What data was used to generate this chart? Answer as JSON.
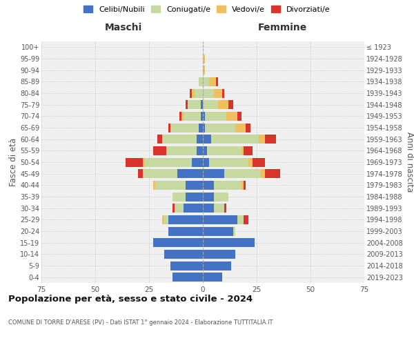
{
  "age_groups": [
    "0-4",
    "5-9",
    "10-14",
    "15-19",
    "20-24",
    "25-29",
    "30-34",
    "35-39",
    "40-44",
    "45-49",
    "50-54",
    "55-59",
    "60-64",
    "65-69",
    "70-74",
    "75-79",
    "80-84",
    "85-89",
    "90-94",
    "95-99",
    "100+"
  ],
  "birth_years": [
    "2019-2023",
    "2014-2018",
    "2009-2013",
    "2004-2008",
    "1999-2003",
    "1994-1998",
    "1989-1993",
    "1984-1988",
    "1979-1983",
    "1974-1978",
    "1969-1973",
    "1964-1968",
    "1959-1963",
    "1954-1958",
    "1949-1953",
    "1944-1948",
    "1939-1943",
    "1934-1938",
    "1929-1933",
    "1924-1928",
    "≤ 1923"
  ],
  "male": {
    "celibi": [
      14,
      15,
      18,
      23,
      16,
      16,
      9,
      8,
      8,
      12,
      5,
      3,
      3,
      2,
      1,
      1,
      0,
      0,
      0,
      0,
      0
    ],
    "coniugati": [
      0,
      0,
      0,
      0,
      0,
      2,
      4,
      6,
      14,
      16,
      22,
      14,
      16,
      13,
      8,
      6,
      4,
      2,
      0,
      0,
      0
    ],
    "vedovi": [
      0,
      0,
      0,
      0,
      0,
      1,
      0,
      0,
      1,
      0,
      1,
      0,
      0,
      0,
      1,
      0,
      1,
      0,
      0,
      0,
      0
    ],
    "divorziati": [
      0,
      0,
      0,
      0,
      0,
      0,
      1,
      0,
      0,
      2,
      8,
      6,
      2,
      1,
      1,
      1,
      1,
      0,
      0,
      0,
      0
    ]
  },
  "female": {
    "nubili": [
      9,
      13,
      15,
      24,
      14,
      16,
      5,
      5,
      5,
      10,
      3,
      2,
      4,
      1,
      1,
      0,
      0,
      0,
      0,
      0,
      0
    ],
    "coniugate": [
      0,
      0,
      0,
      0,
      1,
      3,
      5,
      7,
      13,
      17,
      18,
      16,
      22,
      14,
      10,
      7,
      5,
      3,
      0,
      0,
      0
    ],
    "vedove": [
      0,
      0,
      0,
      0,
      0,
      0,
      0,
      0,
      1,
      2,
      2,
      1,
      3,
      5,
      5,
      5,
      4,
      3,
      1,
      1,
      0
    ],
    "divorziate": [
      0,
      0,
      0,
      0,
      0,
      2,
      1,
      0,
      1,
      7,
      6,
      4,
      5,
      2,
      2,
      2,
      1,
      1,
      0,
      0,
      0
    ]
  },
  "colors": {
    "celibi": "#4472c4",
    "coniugati": "#c5d9a0",
    "vedovi": "#f0c060",
    "divorziati": "#d9342b"
  },
  "xlim": 75,
  "title": "Popolazione per età, sesso e stato civile - 2024",
  "subtitle": "COMUNE DI TORRE D'ARESE (PV) - Dati ISTAT 1° gennaio 2024 - Elaborazione TUTTITALIA.IT",
  "xlabel_left": "Maschi",
  "xlabel_right": "Femmine",
  "ylabel_left": "Fasce di età",
  "ylabel_right": "Anni di nascita",
  "legend_labels": [
    "Celibi/Nubili",
    "Coniugati/e",
    "Vedovi/e",
    "Divorziati/e"
  ],
  "bg_color": "#ffffff",
  "grid_color": "#cccccc",
  "tick_color": "#555555"
}
